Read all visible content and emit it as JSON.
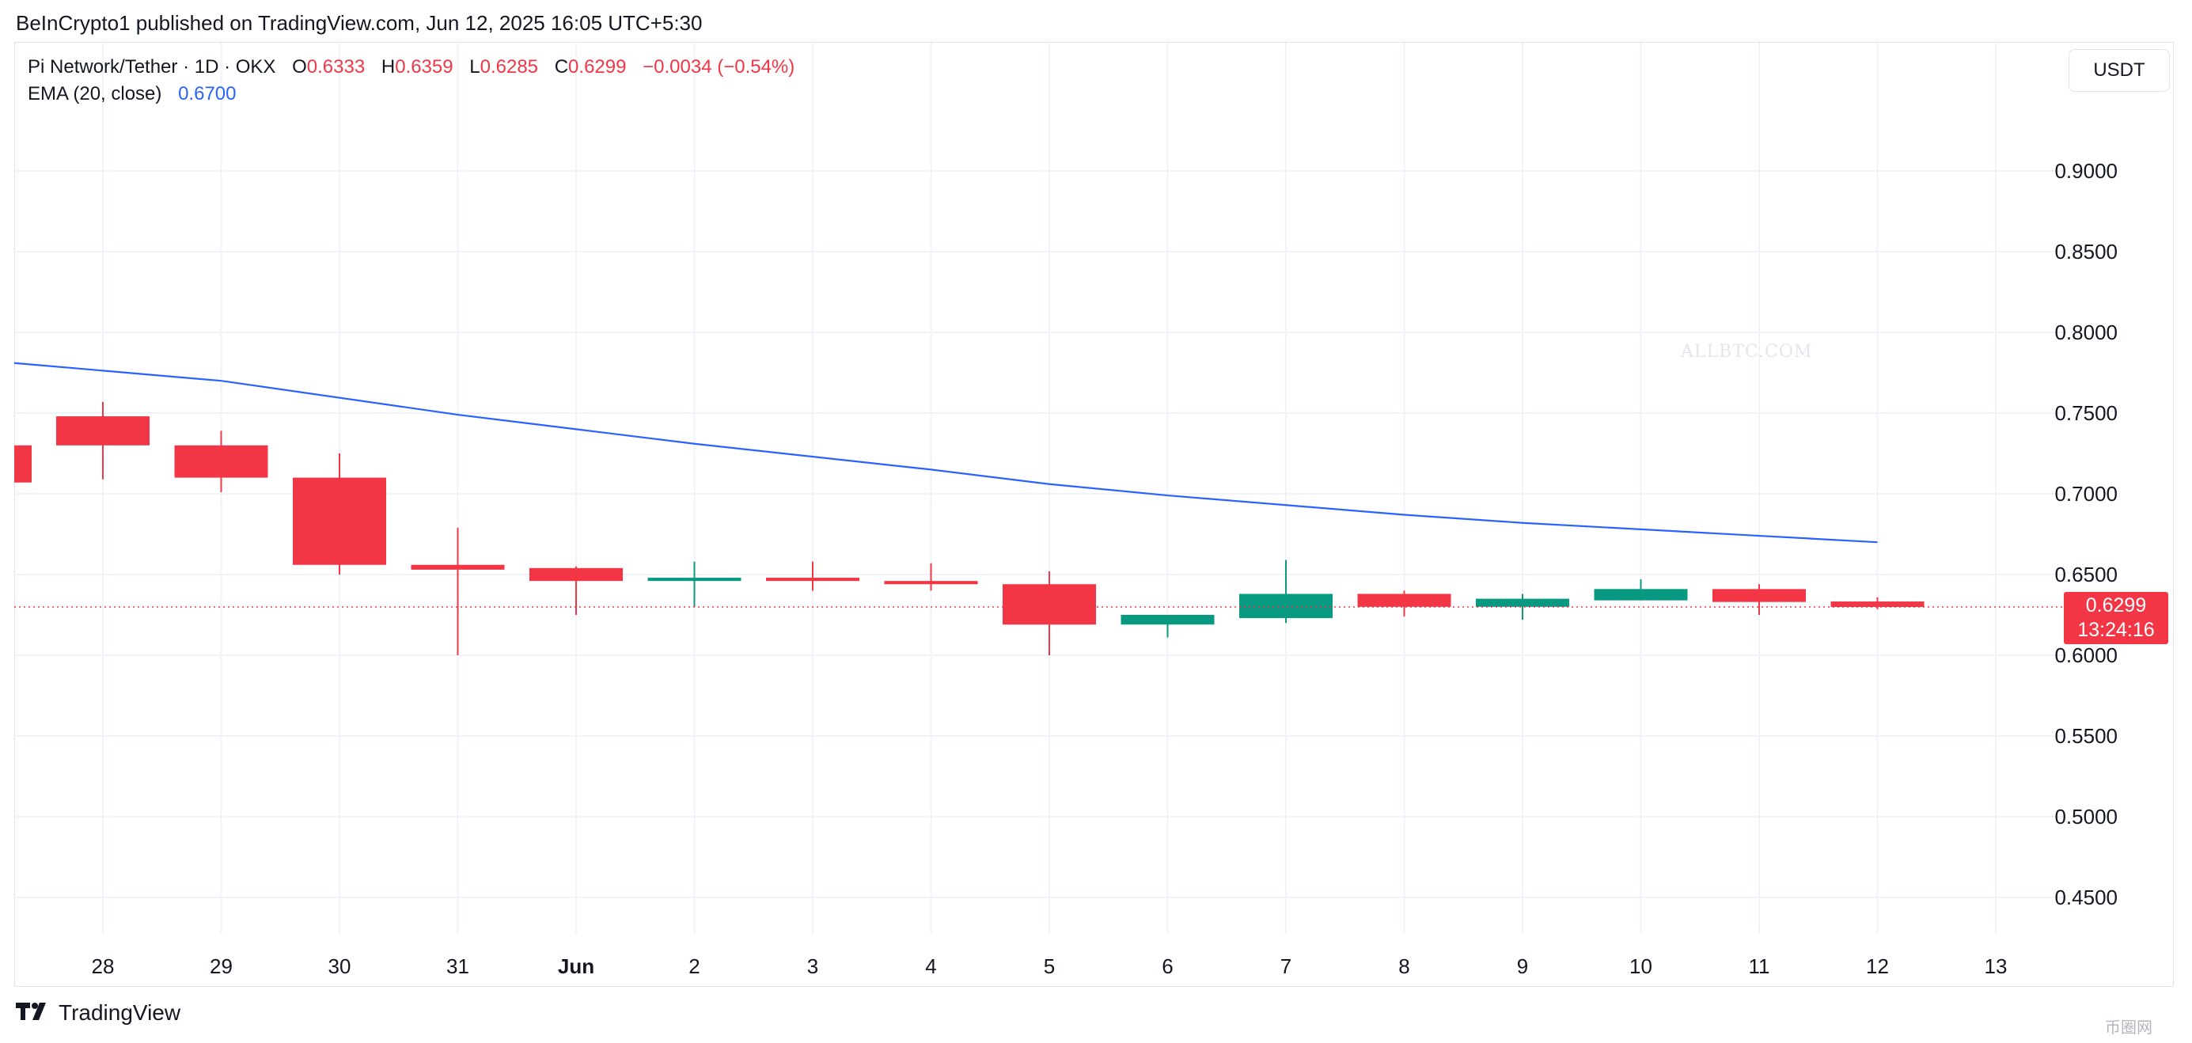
{
  "header": {
    "publisher_text": "BeInCrypto1 published on TradingView.com, Jun 12, 2025 16:05 UTC+5:30"
  },
  "legend": {
    "symbol": "Pi Network/Tether · 1D · OKX",
    "o_label": "O",
    "o_value": "0.6333",
    "h_label": "H",
    "h_value": "0.6359",
    "l_label": "L",
    "l_value": "0.6285",
    "c_label": "C",
    "c_value": "0.6299",
    "change": "−0.0034 (−0.54%)",
    "ema_label": "EMA (20, close)",
    "ema_value": "0.6700"
  },
  "currency_button": "USDT",
  "price_badge": {
    "price": "0.6299",
    "countdown": "13:24:16"
  },
  "footer": {
    "brand": "TradingView"
  },
  "watermark": {
    "text": "ALLBTC.COM",
    "corner": "币圈网"
  },
  "colors": {
    "up": "#089981",
    "down": "#f23645",
    "ema": "#2962ff",
    "grid": "#f0f3fa",
    "axis_text": "#131722"
  },
  "chart_data": {
    "type": "candlestick",
    "title": "Pi Network/Tether · 1D · OKX",
    "ylim": [
      0.41,
      0.93
    ],
    "yticks": [
      "0.4500",
      "0.5000",
      "0.5500",
      "0.6000",
      "0.6500",
      "0.7000",
      "0.7500",
      "0.8000",
      "0.8500",
      "0.9000"
    ],
    "x_labels": [
      "28",
      "29",
      "30",
      "31",
      "Jun",
      "2",
      "3",
      "4",
      "5",
      "6",
      "7",
      "8",
      "9",
      "10",
      "11",
      "12",
      "13"
    ],
    "candles": [
      {
        "x": "27",
        "open": 0.73,
        "high": 0.73,
        "low": 0.707,
        "close": 0.707
      },
      {
        "x": "28",
        "open": 0.748,
        "high": 0.757,
        "low": 0.709,
        "close": 0.73
      },
      {
        "x": "29",
        "open": 0.73,
        "high": 0.739,
        "low": 0.701,
        "close": 0.71
      },
      {
        "x": "30",
        "open": 0.71,
        "high": 0.725,
        "low": 0.65,
        "close": 0.656
      },
      {
        "x": "31",
        "open": 0.656,
        "high": 0.679,
        "low": 0.6,
        "close": 0.653
      },
      {
        "x": "Jun",
        "open": 0.654,
        "high": 0.655,
        "low": 0.625,
        "close": 0.646
      },
      {
        "x": "2",
        "open": 0.646,
        "high": 0.658,
        "low": 0.63,
        "close": 0.648
      },
      {
        "x": "3",
        "open": 0.648,
        "high": 0.658,
        "low": 0.64,
        "close": 0.646
      },
      {
        "x": "4",
        "open": 0.646,
        "high": 0.657,
        "low": 0.64,
        "close": 0.644
      },
      {
        "x": "5",
        "open": 0.644,
        "high": 0.652,
        "low": 0.6,
        "close": 0.619
      },
      {
        "x": "6",
        "open": 0.619,
        "high": 0.625,
        "low": 0.611,
        "close": 0.625
      },
      {
        "x": "7",
        "open": 0.623,
        "high": 0.659,
        "low": 0.62,
        "close": 0.638
      },
      {
        "x": "8",
        "open": 0.638,
        "high": 0.64,
        "low": 0.624,
        "close": 0.63
      },
      {
        "x": "9",
        "open": 0.63,
        "high": 0.638,
        "low": 0.622,
        "close": 0.635
      },
      {
        "x": "10",
        "open": 0.634,
        "high": 0.647,
        "low": 0.634,
        "close": 0.641
      },
      {
        "x": "11",
        "open": 0.641,
        "high": 0.644,
        "low": 0.625,
        "close": 0.633
      },
      {
        "x": "12",
        "open": 0.6333,
        "high": 0.6359,
        "low": 0.6285,
        "close": 0.6299
      }
    ],
    "ema": {
      "name": "EMA (20, close)",
      "points": [
        {
          "x": "27",
          "y": 0.781
        },
        {
          "x": "29",
          "y": 0.77
        },
        {
          "x": "31",
          "y": 0.749
        },
        {
          "x": "Jun",
          "y": 0.74
        },
        {
          "x": "2",
          "y": 0.731
        },
        {
          "x": "4",
          "y": 0.715
        },
        {
          "x": "5",
          "y": 0.706
        },
        {
          "x": "6",
          "y": 0.699
        },
        {
          "x": "7",
          "y": 0.693
        },
        {
          "x": "8",
          "y": 0.687
        },
        {
          "x": "9",
          "y": 0.682
        },
        {
          "x": "10",
          "y": 0.678
        },
        {
          "x": "11",
          "y": 0.674
        },
        {
          "x": "12",
          "y": 0.67
        }
      ]
    },
    "last_price": 0.6299,
    "grid": true
  }
}
